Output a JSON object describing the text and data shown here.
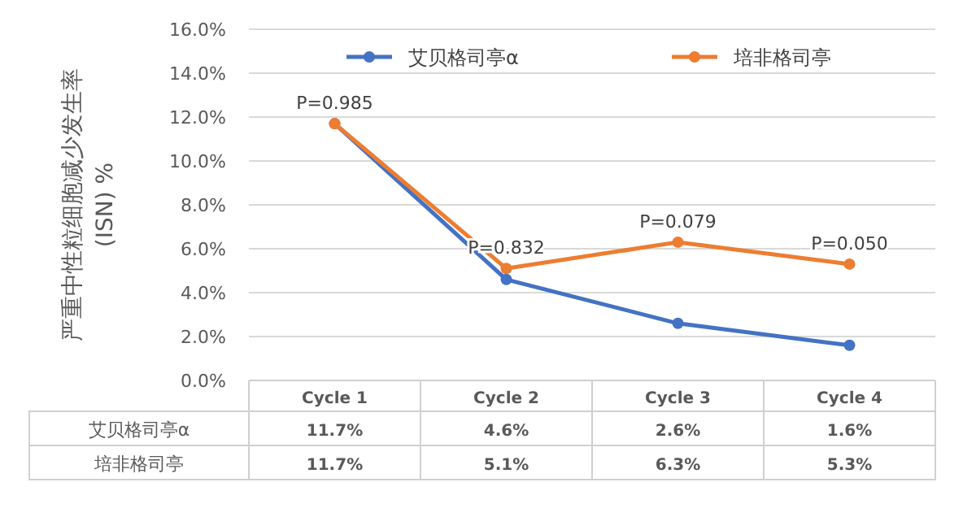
{
  "chart_data": {
    "type": "line",
    "ylabel": "严重中性粒细胞减少发生率 (ISN) %",
    "categories": [
      "Cycle 1",
      "Cycle 2",
      "Cycle 3",
      "Cycle 4"
    ],
    "series": [
      {
        "name": "艾贝格司亭α",
        "color": "#4472c4",
        "values": [
          11.7,
          4.6,
          2.6,
          1.6
        ],
        "value_labels": [
          "11.7%",
          "4.6%",
          "2.6%",
          "1.6%"
        ]
      },
      {
        "name": "培非格司亭",
        "color": "#ed7d31",
        "values": [
          11.7,
          5.1,
          6.3,
          5.3
        ],
        "value_labels": [
          "11.7%",
          "5.1%",
          "6.3%",
          "5.3%"
        ]
      }
    ],
    "ylim": [
      0,
      16
    ],
    "yticks": [
      {
        "value": 0,
        "label": "0.0%"
      },
      {
        "value": 2,
        "label": "2.0%"
      },
      {
        "value": 4,
        "label": "4.0%"
      },
      {
        "value": 6,
        "label": "6.0%"
      },
      {
        "value": 8,
        "label": "8.0%"
      },
      {
        "value": 10,
        "label": "10.0%"
      },
      {
        "value": 12,
        "label": "12.0%"
      },
      {
        "value": 14,
        "label": "14.0%"
      },
      {
        "value": 16,
        "label": "16.0%"
      }
    ],
    "annotations": [
      {
        "text": "P=0.985",
        "x": "Cycle 1",
        "y": 11.7
      },
      {
        "text": "P=0.832",
        "x": "Cycle 2",
        "y": 5.1
      },
      {
        "text": "P=0.079",
        "x": "Cycle 3",
        "y": 6.3
      },
      {
        "text": "P=0.050",
        "x": "Cycle 4",
        "y": 5.3
      }
    ],
    "grid": "y",
    "legend": "top",
    "marker": "circle",
    "line_style": "solid"
  }
}
